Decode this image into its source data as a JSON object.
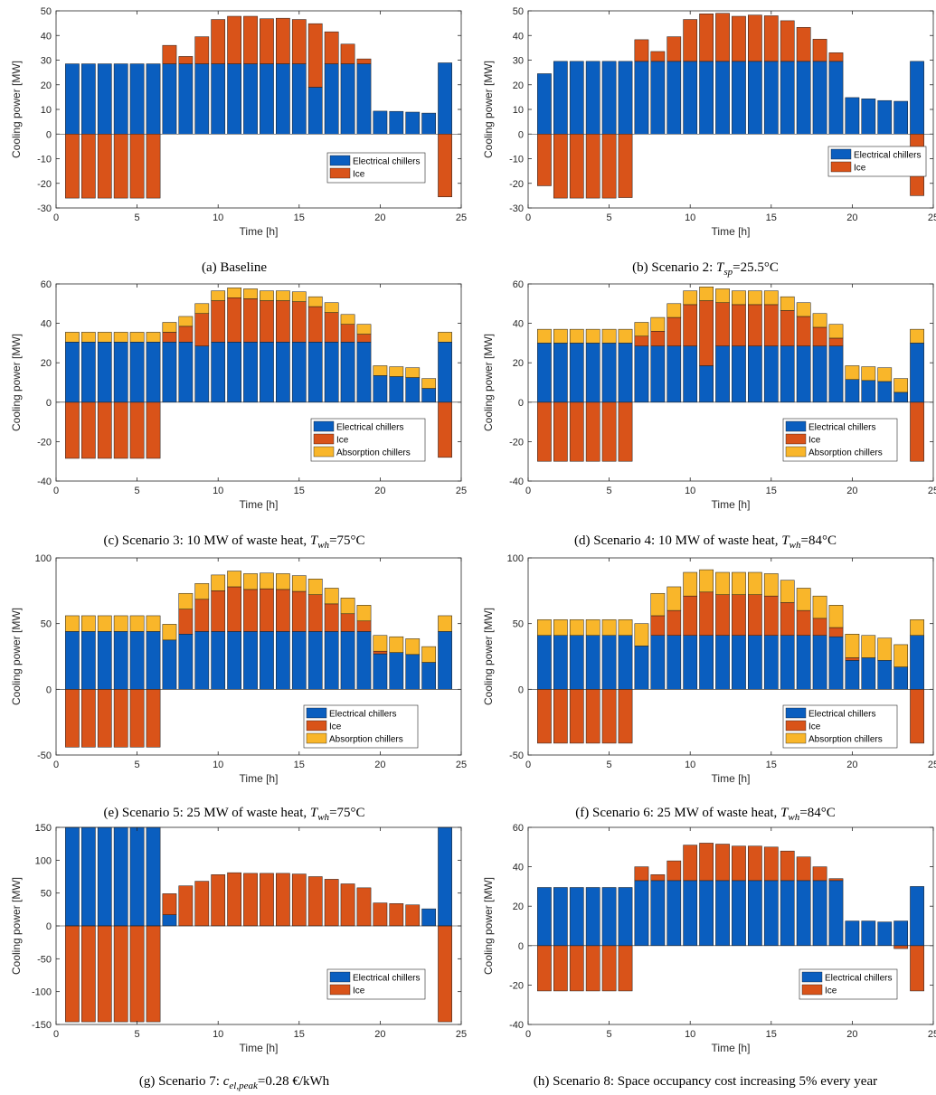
{
  "colors": {
    "electrical": "#0a5ebf",
    "ice": "#d95319",
    "absorption": "#f9b62a"
  },
  "chart_data": [
    {
      "type": "bar",
      "caption": "(a) Baseline",
      "xlabel": "Time [h]",
      "ylabel": "Cooling power [MW]",
      "xlim": [
        0,
        25
      ],
      "ylim": [
        -30,
        50
      ],
      "xticks": [
        0,
        5,
        10,
        15,
        20,
        25
      ],
      "yticks": [
        -30,
        -20,
        -10,
        0,
        10,
        20,
        30,
        40,
        50
      ],
      "legend": [
        "Electrical chillers",
        "Ice"
      ],
      "legend_position": "bottom-right",
      "x": [
        1,
        2,
        3,
        4,
        5,
        6,
        7,
        8,
        9,
        10,
        11,
        12,
        13,
        14,
        15,
        16,
        17,
        18,
        19,
        20,
        21,
        22,
        23,
        24
      ],
      "series": [
        {
          "name": "Electrical chillers",
          "values": [
            28.5,
            28.5,
            28.5,
            28.5,
            28.5,
            28.5,
            28.5,
            28.5,
            28.5,
            28.5,
            28.5,
            28.5,
            28.5,
            28.5,
            28.5,
            19,
            28.5,
            28.5,
            28.5,
            9.3,
            9.2,
            8.9,
            8.5,
            28.9
          ]
        },
        {
          "name": "Ice",
          "values": [
            -26,
            -26,
            -26,
            -26,
            -26,
            -26,
            7.5,
            3,
            11,
            18,
            19.3,
            19.3,
            18.3,
            18.5,
            18,
            25.8,
            13,
            8,
            2,
            0,
            0,
            0,
            0,
            -25.5
          ]
        }
      ]
    },
    {
      "type": "bar",
      "caption_prefix": "(b) Scenario 2:",
      "caption_var": "T",
      "caption_sub": "sp",
      "caption_suffix": "=25.5°C",
      "xlabel": "Time [h]",
      "ylabel": "Cooling power [MW]",
      "xlim": [
        0,
        25
      ],
      "ylim": [
        -30,
        50
      ],
      "xticks": [
        0,
        5,
        10,
        15,
        20,
        25
      ],
      "yticks": [
        -30,
        -20,
        -10,
        0,
        10,
        20,
        30,
        40,
        50
      ],
      "legend": [
        "Electrical chillers",
        "Ice"
      ],
      "legend_position": "right",
      "x": [
        1,
        2,
        3,
        4,
        5,
        6,
        7,
        8,
        9,
        10,
        11,
        12,
        13,
        14,
        15,
        16,
        17,
        18,
        19,
        20,
        21,
        22,
        23,
        24
      ],
      "series": [
        {
          "name": "Electrical chillers",
          "values": [
            24.5,
            29.5,
            29.5,
            29.5,
            29.5,
            29.5,
            29.5,
            29.5,
            29.5,
            29.5,
            29.5,
            29.5,
            29.5,
            29.5,
            29.5,
            29.5,
            29.5,
            29.5,
            29.5,
            14.8,
            14.3,
            13.6,
            13.3,
            29.5
          ]
        },
        {
          "name": "Ice",
          "values": [
            -21,
            -26,
            -26,
            -26,
            -26,
            -25.8,
            8.8,
            4,
            10,
            17,
            19.3,
            19.5,
            18.3,
            18.8,
            18.5,
            16.5,
            13.8,
            9,
            3.5,
            0,
            0,
            0,
            0,
            -25
          ]
        }
      ]
    },
    {
      "type": "bar",
      "caption_prefix": "(c) Scenario 3: 10 MW of waste heat,",
      "caption_var": "T",
      "caption_sub": "wh",
      "caption_suffix": "=75°C",
      "xlabel": "Time [h]",
      "ylabel": "Cooling power [MW]",
      "xlim": [
        0,
        25
      ],
      "ylim": [
        -40,
        60
      ],
      "xticks": [
        0,
        5,
        10,
        15,
        20,
        25
      ],
      "yticks": [
        -40,
        -20,
        0,
        20,
        40,
        60
      ],
      "legend": [
        "Electrical chillers",
        "Ice",
        "Absorption chillers"
      ],
      "legend_position": "bottom-right",
      "x": [
        1,
        2,
        3,
        4,
        5,
        6,
        7,
        8,
        9,
        10,
        11,
        12,
        13,
        14,
        15,
        16,
        17,
        18,
        19,
        20,
        21,
        22,
        23,
        24
      ],
      "series": [
        {
          "name": "Electrical chillers",
          "values": [
            30.5,
            30.5,
            30.5,
            30.5,
            30.5,
            30.5,
            30.5,
            30.5,
            28.5,
            30.5,
            30.5,
            30.5,
            30.5,
            30.5,
            30.5,
            30.5,
            30.5,
            30.5,
            30.5,
            13.5,
            13,
            12.5,
            7,
            30.5
          ]
        },
        {
          "name": "Ice",
          "values": [
            -28.5,
            -28.5,
            -28.5,
            -28.5,
            -28.5,
            -28.5,
            5,
            8,
            16.5,
            21,
            22.5,
            22,
            21,
            21,
            20.5,
            18,
            15,
            9,
            4,
            0,
            0,
            0,
            0,
            -28
          ]
        },
        {
          "name": "Absorption chillers",
          "values": [
            5,
            5,
            5,
            5,
            5,
            5,
            5,
            5,
            5,
            5,
            5,
            5,
            5,
            5,
            5,
            5,
            5,
            5,
            5,
            5,
            5,
            5,
            5,
            5
          ]
        }
      ]
    },
    {
      "type": "bar",
      "caption_prefix": "(d) Scenario 4: 10 MW of waste heat,",
      "caption_var": "T",
      "caption_sub": "wh",
      "caption_suffix": "=84°C",
      "xlabel": "Time [h]",
      "ylabel": "Cooling power [MW]",
      "xlim": [
        0,
        25
      ],
      "ylim": [
        -40,
        60
      ],
      "xticks": [
        0,
        5,
        10,
        15,
        20,
        25
      ],
      "yticks": [
        -40,
        -20,
        0,
        20,
        40,
        60
      ],
      "legend": [
        "Electrical chillers",
        "Ice",
        "Absorption chillers"
      ],
      "legend_position": "bottom-right",
      "x": [
        1,
        2,
        3,
        4,
        5,
        6,
        7,
        8,
        9,
        10,
        11,
        12,
        13,
        14,
        15,
        16,
        17,
        18,
        19,
        20,
        21,
        22,
        23,
        24
      ],
      "series": [
        {
          "name": "Electrical chillers",
          "values": [
            30,
            30,
            30,
            30,
            30,
            30,
            28.5,
            28.5,
            28.5,
            28.5,
            18.5,
            28.5,
            28.5,
            28.5,
            28.5,
            28.5,
            28.5,
            28.5,
            28.5,
            11.5,
            11,
            10.5,
            5,
            30
          ]
        },
        {
          "name": "Ice",
          "values": [
            -30,
            -30,
            -30,
            -30,
            -30,
            -30,
            5,
            7.5,
            14.5,
            21,
            33,
            22,
            21,
            21,
            21,
            18,
            15,
            9.5,
            4,
            0,
            0,
            0,
            0,
            -30
          ]
        },
        {
          "name": "Absorption chillers",
          "values": [
            7,
            7,
            7,
            7,
            7,
            7,
            7,
            7,
            7,
            7,
            7,
            7,
            7,
            7,
            7,
            7,
            7,
            7,
            7,
            7,
            7,
            7,
            7,
            7
          ]
        }
      ]
    },
    {
      "type": "bar",
      "caption_prefix": "(e) Scenario 5: 25 MW of waste heat,",
      "caption_var": "T",
      "caption_sub": "wh",
      "caption_suffix": "=75°C",
      "xlabel": "Time [h]",
      "ylabel": "Cooling power [MW]",
      "xlim": [
        0,
        25
      ],
      "ylim": [
        -50,
        100
      ],
      "xticks": [
        0,
        5,
        10,
        15,
        20,
        25
      ],
      "yticks": [
        -50,
        0,
        50,
        100
      ],
      "legend": [
        "Electrical chillers",
        "Ice",
        "Absorption chillers"
      ],
      "legend_position": "bottom-right",
      "x": [
        1,
        2,
        3,
        4,
        5,
        6,
        7,
        8,
        9,
        10,
        11,
        12,
        13,
        14,
        15,
        16,
        17,
        18,
        19,
        20,
        21,
        22,
        23,
        24
      ],
      "series": [
        {
          "name": "Electrical chillers",
          "values": [
            44,
            44,
            44,
            44,
            44,
            44,
            37.5,
            42,
            44,
            44,
            44,
            44,
            44,
            44,
            44,
            44,
            44,
            44,
            44,
            27,
            28,
            26.5,
            20.5,
            44
          ]
        },
        {
          "name": "Ice",
          "values": [
            -44,
            -44,
            -44,
            -44,
            -44,
            -44,
            0,
            19,
            24.5,
            31,
            34,
            32,
            32.5,
            32,
            30.5,
            28,
            21,
            13.5,
            8,
            2,
            0,
            0,
            0,
            0
          ]
        },
        {
          "name": "Absorption chillers",
          "values": [
            12,
            12,
            12,
            12,
            12,
            12,
            12,
            12,
            12,
            12,
            12,
            12,
            12,
            12,
            12,
            12,
            12,
            12,
            12,
            12,
            12,
            12,
            12,
            12
          ]
        }
      ]
    },
    {
      "type": "bar",
      "caption_prefix": "(f) Scenario 6: 25 MW of waste heat,",
      "caption_var": "T",
      "caption_sub": "wh",
      "caption_suffix": "=84°C",
      "xlabel": "Time [h]",
      "ylabel": "Cooling power [MW]",
      "xlim": [
        0,
        25
      ],
      "ylim": [
        -50,
        100
      ],
      "xticks": [
        0,
        5,
        10,
        15,
        20,
        25
      ],
      "yticks": [
        -50,
        0,
        50,
        100
      ],
      "legend": [
        "Electrical chillers",
        "Ice",
        "Absorption chillers"
      ],
      "legend_position": "bottom-right",
      "x": [
        1,
        2,
        3,
        4,
        5,
        6,
        7,
        8,
        9,
        10,
        11,
        12,
        13,
        14,
        15,
        16,
        17,
        18,
        19,
        20,
        21,
        22,
        23,
        24
      ],
      "series": [
        {
          "name": "Electrical chillers",
          "values": [
            41,
            41,
            41,
            41,
            41,
            41,
            33,
            41,
            41,
            41,
            41,
            41,
            41,
            41,
            41,
            41,
            41,
            41,
            40,
            22,
            24,
            22,
            17,
            41
          ]
        },
        {
          "name": "Ice",
          "values": [
            -41,
            -41,
            -41,
            -41,
            -41,
            -41,
            0,
            15,
            19,
            30,
            33,
            31,
            31,
            31,
            30,
            25,
            19,
            13,
            7,
            2,
            0,
            0,
            0,
            -41
          ]
        },
        {
          "name": "Absorption chillers",
          "values": [
            12,
            12,
            12,
            12,
            12,
            12,
            17,
            17,
            18,
            18,
            17,
            17,
            17,
            17,
            17,
            17,
            17,
            17,
            17,
            18,
            17,
            17,
            17,
            12
          ]
        }
      ]
    },
    {
      "type": "bar",
      "caption_prefix": "(g) Scenario 7:",
      "caption_var": "c",
      "caption_sub": "el,peak",
      "caption_suffix": "=0.28 €/kWh",
      "xlabel": "Time [h]",
      "ylabel": "Cooling power [MW]",
      "xlim": [
        0,
        25
      ],
      "ylim": [
        -150,
        150
      ],
      "xticks": [
        0,
        5,
        10,
        15,
        20,
        25
      ],
      "yticks": [
        -150,
        -100,
        -50,
        0,
        50,
        100,
        150
      ],
      "legend": [
        "Electrical chillers",
        "Ice"
      ],
      "legend_position": "bottom-right",
      "x": [
        1,
        2,
        3,
        4,
        5,
        6,
        7,
        8,
        9,
        10,
        11,
        12,
        13,
        14,
        15,
        16,
        17,
        18,
        19,
        20,
        21,
        22,
        23,
        24
      ],
      "series": [
        {
          "name": "Electrical chillers",
          "values": [
            150,
            150,
            150,
            150,
            150,
            150,
            17,
            0,
            0,
            0,
            0,
            0,
            0,
            0,
            0,
            0,
            0,
            0,
            0,
            0,
            0,
            0,
            26,
            150
          ]
        },
        {
          "name": "Ice",
          "values": [
            -146,
            -146,
            -146,
            -146,
            -146,
            -146,
            32,
            61,
            68,
            78,
            81,
            80,
            80,
            80,
            79,
            75,
            71,
            64,
            58,
            35,
            34,
            32,
            0,
            -146
          ]
        }
      ]
    },
    {
      "type": "bar",
      "caption": "(h) Scenario 8: Space occupancy cost increasing 5% every year",
      "xlabel": "Time [h]",
      "ylabel": "Cooling power [MW]",
      "xlim": [
        0,
        25
      ],
      "ylim": [
        -40,
        60
      ],
      "xticks": [
        0,
        5,
        10,
        15,
        20,
        25
      ],
      "yticks": [
        -40,
        -20,
        0,
        20,
        40,
        60
      ],
      "legend": [
        "Electrical chillers",
        "Ice"
      ],
      "legend_position": "bottom-right",
      "x": [
        1,
        2,
        3,
        4,
        5,
        6,
        7,
        8,
        9,
        10,
        11,
        12,
        13,
        14,
        15,
        16,
        17,
        18,
        19,
        20,
        21,
        22,
        23,
        24
      ],
      "series": [
        {
          "name": "Electrical chillers",
          "values": [
            29.5,
            29.5,
            29.5,
            29.5,
            29.5,
            29.5,
            33,
            33,
            33,
            33,
            33,
            33,
            33,
            33,
            33,
            33,
            33,
            33,
            33,
            12.5,
            12.5,
            12,
            12.5,
            30
          ]
        },
        {
          "name": "Ice",
          "values": [
            -23,
            -23,
            -23,
            -23,
            -23,
            -23,
            7,
            3,
            10,
            18,
            19,
            18.5,
            17.5,
            17.5,
            17,
            15,
            12,
            7,
            1,
            0,
            0,
            0,
            -1.5,
            -23
          ]
        }
      ]
    }
  ]
}
